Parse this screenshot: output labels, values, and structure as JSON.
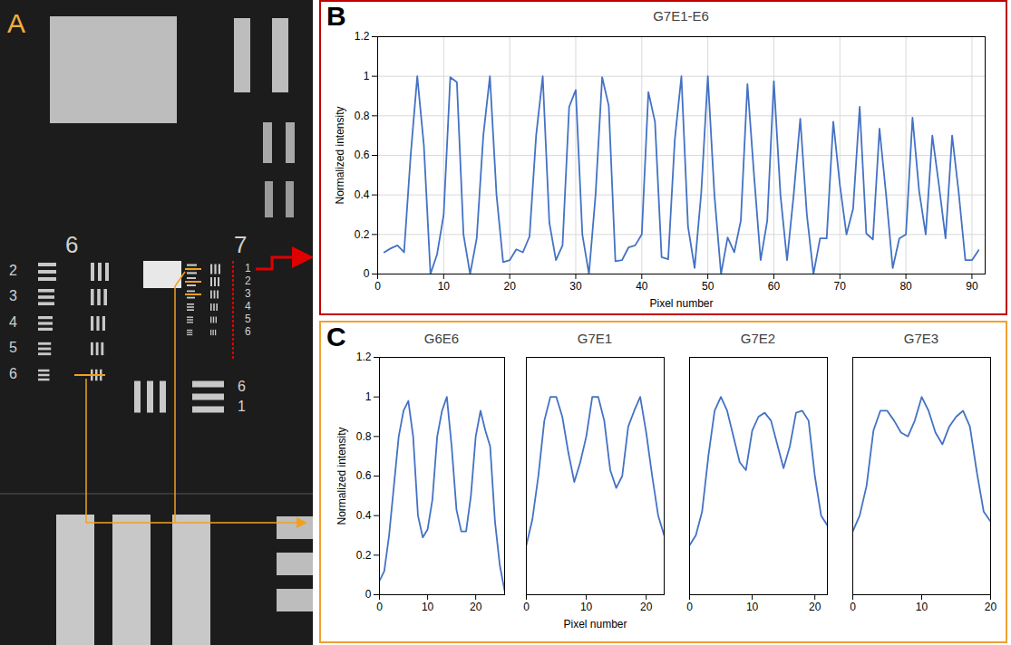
{
  "panel_labels": [
    "A",
    "B",
    "C"
  ],
  "image_panel": {
    "group_labels": [
      "6",
      "7"
    ],
    "group6_element_labels": [
      "2",
      "3",
      "4",
      "5",
      "6"
    ],
    "group7_element_labels": [
      "1",
      "2",
      "3",
      "4",
      "5",
      "6"
    ],
    "corner_labels": [
      "6",
      "1"
    ]
  },
  "chart_data": [
    {
      "type": "line",
      "title": "G7E1-E6",
      "xlabel": "Pixel number",
      "ylabel": "Normalized intensity",
      "color": "#4472c4",
      "x": [
        1,
        2,
        3,
        4,
        5,
        6,
        7,
        8,
        9,
        10,
        11,
        12,
        13,
        14,
        15,
        16,
        17,
        18,
        19,
        20,
        21,
        22,
        23,
        24,
        25,
        26,
        27,
        28,
        29,
        30,
        31,
        32,
        33,
        34,
        35,
        36,
        37,
        38,
        39,
        40,
        41,
        42,
        43,
        44,
        45,
        46,
        47,
        48,
        49,
        50,
        51,
        52,
        53,
        54,
        55,
        56,
        57,
        58,
        59,
        60,
        61,
        62,
        63,
        64,
        65,
        66,
        67,
        68,
        69,
        70,
        71,
        72,
        73,
        74,
        75,
        76,
        77,
        78,
        79,
        80,
        81,
        82,
        83,
        84,
        85,
        86,
        87,
        88,
        89,
        90,
        91
      ],
      "values": [
        0.11,
        0.13,
        0.145,
        0.11,
        0.6,
        1.0,
        0.65,
        0.0,
        0.1,
        0.3,
        0.995,
        0.97,
        0.2,
        0.0,
        0.18,
        0.7,
        1.0,
        0.4,
        0.06,
        0.07,
        0.125,
        0.11,
        0.19,
        0.7,
        1.0,
        0.26,
        0.07,
        0.145,
        0.845,
        0.93,
        0.2,
        0.0,
        0.4,
        0.995,
        0.85,
        0.065,
        0.07,
        0.135,
        0.145,
        0.2,
        0.92,
        0.77,
        0.085,
        0.075,
        0.68,
        1.0,
        0.24,
        0.03,
        0.41,
        1.0,
        0.4,
        0.0,
        0.185,
        0.11,
        0.27,
        0.96,
        0.5,
        0.07,
        0.27,
        0.975,
        0.4,
        0.07,
        0.4,
        0.785,
        0.3,
        0.0,
        0.18,
        0.18,
        0.77,
        0.45,
        0.2,
        0.33,
        0.845,
        0.205,
        0.175,
        0.735,
        0.4,
        0.03,
        0.18,
        0.2,
        0.79,
        0.42,
        0.2,
        0.7,
        0.45,
        0.18,
        0.7,
        0.41,
        0.07,
        0.07,
        0.12
      ],
      "xlim": [
        0,
        92
      ],
      "ylim": [
        0,
        1.2
      ],
      "xticks": [
        0,
        10,
        20,
        30,
        40,
        50,
        60,
        70,
        80,
        90
      ],
      "yticks": [
        0,
        0.2,
        0.4,
        0.6,
        0.8,
        1,
        1.2
      ],
      "grid": true
    },
    {
      "type": "line",
      "title": "G6E6",
      "ylabel": "Normalized intensity",
      "color": "#4472c4",
      "x": [
        0,
        1,
        2,
        3,
        4,
        5,
        6,
        7,
        8,
        9,
        10,
        11,
        12,
        13,
        14,
        15,
        16,
        17,
        18,
        19,
        20,
        21,
        22,
        23,
        24,
        25,
        26
      ],
      "values": [
        0.07,
        0.12,
        0.3,
        0.55,
        0.8,
        0.93,
        0.98,
        0.8,
        0.4,
        0.29,
        0.33,
        0.48,
        0.8,
        0.93,
        1.0,
        0.75,
        0.43,
        0.32,
        0.32,
        0.5,
        0.8,
        0.93,
        0.83,
        0.75,
        0.37,
        0.15,
        0.02
      ],
      "xlim": [
        0,
        26
      ],
      "ylim": [
        0,
        1.2
      ],
      "xticks": [
        0,
        10,
        20
      ],
      "yticks": [
        0,
        0.2,
        0.4,
        0.6,
        0.8,
        1,
        1.2
      ],
      "grid": false
    },
    {
      "type": "line",
      "title": "G7E1",
      "xlabel": "Pixel number",
      "color": "#4472c4",
      "x": [
        0,
        1,
        2,
        3,
        4,
        5,
        6,
        7,
        8,
        9,
        10,
        11,
        12,
        13,
        14,
        15,
        16,
        17,
        18,
        19,
        20,
        21,
        22,
        23
      ],
      "values": [
        0.25,
        0.38,
        0.6,
        0.88,
        1.0,
        1.0,
        0.9,
        0.72,
        0.57,
        0.67,
        0.8,
        1.0,
        1.0,
        0.88,
        0.63,
        0.54,
        0.6,
        0.85,
        0.93,
        1.0,
        0.82,
        0.6,
        0.4,
        0.3
      ],
      "xlim": [
        0,
        23
      ],
      "ylim": [
        0,
        1.2
      ],
      "xticks": [
        0,
        10,
        20
      ],
      "grid": false,
      "tick_labels": "x"
    },
    {
      "type": "line",
      "title": "G7E2",
      "color": "#4472c4",
      "x": [
        0,
        1,
        2,
        3,
        4,
        5,
        6,
        7,
        8,
        9,
        10,
        11,
        12,
        13,
        14,
        15,
        16,
        17,
        18,
        19,
        20,
        21,
        22
      ],
      "values": [
        0.25,
        0.3,
        0.42,
        0.7,
        0.93,
        1.0,
        0.93,
        0.8,
        0.67,
        0.63,
        0.83,
        0.9,
        0.92,
        0.88,
        0.76,
        0.64,
        0.75,
        0.92,
        0.93,
        0.88,
        0.6,
        0.4,
        0.35
      ],
      "xlim": [
        0,
        22
      ],
      "ylim": [
        0,
        1.2
      ],
      "xticks": [
        0,
        10,
        20
      ],
      "grid": false,
      "tick_labels": "x"
    },
    {
      "type": "line",
      "title": "G7E3",
      "color": "#4472c4",
      "x": [
        0,
        1,
        2,
        3,
        4,
        5,
        6,
        7,
        8,
        9,
        10,
        11,
        12,
        13,
        14,
        15,
        16,
        17,
        18,
        19,
        20
      ],
      "values": [
        0.32,
        0.4,
        0.55,
        0.83,
        0.93,
        0.93,
        0.88,
        0.82,
        0.8,
        0.88,
        1.0,
        0.93,
        0.82,
        0.76,
        0.85,
        0.9,
        0.93,
        0.85,
        0.62,
        0.42,
        0.37
      ],
      "xlim": [
        0,
        20
      ],
      "ylim": [
        0,
        1.2
      ],
      "xticks": [
        0,
        10,
        20
      ],
      "grid": false,
      "tick_labels": "x"
    }
  ]
}
